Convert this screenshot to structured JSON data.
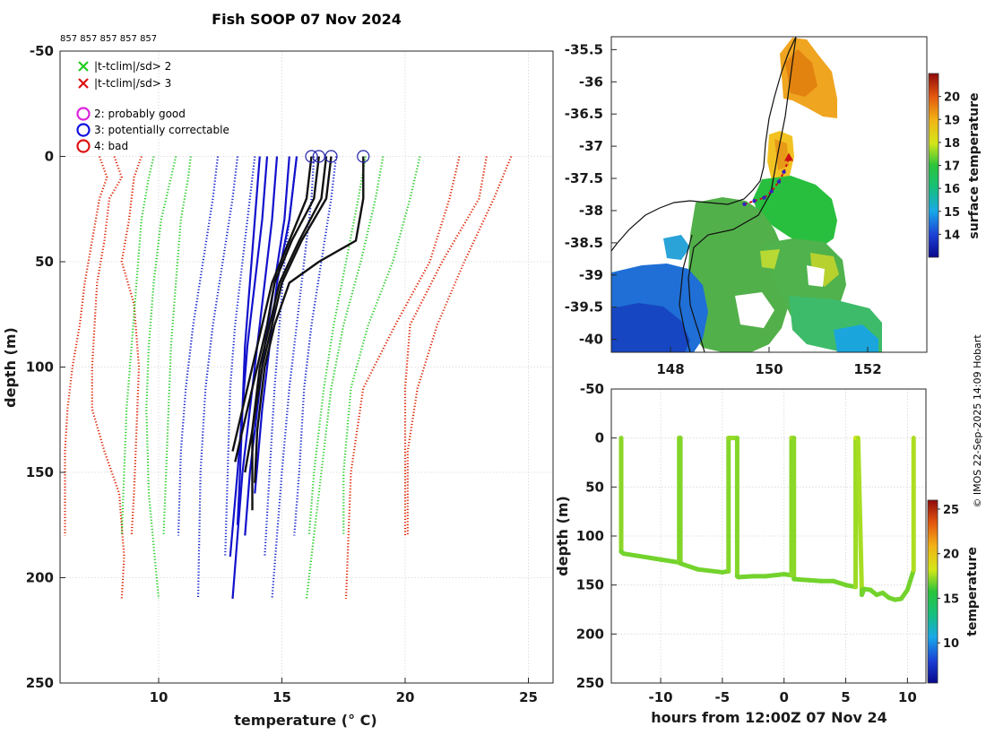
{
  "figure": {
    "title": "Fish SOOP 07 Nov 2024",
    "counts_label": "857 857 857 857 857",
    "copyright": "© IMOS 22-Sep-2025 14:09 Hobart"
  },
  "chart_data": [
    {
      "type": "line",
      "id": "profiles",
      "xlabel": "temperature (° C)",
      "ylabel": "depth (m)",
      "xlim": [
        6,
        26
      ],
      "ylim": [
        250,
        -50
      ],
      "xticks": [
        10,
        15,
        20,
        25
      ],
      "yticks": [
        -50,
        0,
        50,
        100,
        150,
        200,
        250
      ],
      "legend": [
        {
          "marker": "x",
          "color": "#22cc22",
          "label": "|t-tclim|/sd> 2"
        },
        {
          "marker": "x",
          "color": "#dd1111",
          "label": "|t-tclim|/sd> 3"
        },
        {
          "marker": "o",
          "color": "#dd22dd",
          "label": "2: probably good"
        },
        {
          "marker": "o",
          "color": "#1111dd",
          "label": "3: potentially correctable"
        },
        {
          "marker": "o",
          "color": "#dd1111",
          "label": "4: bad"
        }
      ],
      "climatology": [
        {
          "name": "clim -3sd",
          "color": "#dd2200",
          "style": "dotted",
          "profiles": [
            {
              "depth": [
                0,
                10,
                20,
                40,
                60,
                80,
                100,
                120,
                140,
                160,
                180
              ],
              "temp": [
                7.6,
                7.9,
                7.6,
                7.3,
                7.0,
                6.8,
                6.5,
                6.3,
                6.2,
                6.2,
                6.2
              ]
            },
            {
              "depth": [
                0,
                10,
                20,
                40,
                60,
                80,
                100,
                120,
                140,
                160,
                190,
                210
              ],
              "temp": [
                8.2,
                8.5,
                8.0,
                7.8,
                7.5,
                7.4,
                7.3,
                7.3,
                7.8,
                8.4,
                8.6,
                8.5
              ]
            },
            {
              "depth": [
                0,
                10,
                30,
                50,
                70,
                100,
                130,
                160,
                180
              ],
              "temp": [
                9.3,
                9.0,
                8.8,
                8.5,
                9.0,
                9.2,
                9.1,
                9.0,
                8.9
              ]
            }
          ]
        },
        {
          "name": "clim -2sd",
          "color": "#22cc22",
          "style": "dotted",
          "profiles": [
            {
              "depth": [
                0,
                10,
                30,
                60,
                90,
                120,
                150,
                180
              ],
              "temp": [
                9.8,
                9.6,
                9.3,
                9.1,
                8.9,
                8.7,
                8.6,
                8.5
              ]
            },
            {
              "depth": [
                0,
                10,
                30,
                60,
                90,
                120,
                160,
                210
              ],
              "temp": [
                10.7,
                10.5,
                10.1,
                9.8,
                9.6,
                9.5,
                9.6,
                10.0
              ]
            },
            {
              "depth": [
                0,
                10,
                30,
                60,
                90,
                120,
                150,
                180
              ],
              "temp": [
                11.3,
                11.2,
                10.9,
                10.7,
                10.5,
                10.4,
                10.3,
                10.2
              ]
            }
          ]
        },
        {
          "name": "clim -1sd",
          "color": "#1122cc",
          "style": "dotted",
          "profiles": [
            {
              "depth": [
                0,
                20,
                50,
                80,
                110,
                140,
                180
              ],
              "temp": [
                12.4,
                12.2,
                11.8,
                11.4,
                11.1,
                10.9,
                10.8
              ]
            },
            {
              "depth": [
                0,
                20,
                50,
                80,
                110,
                150,
                210
              ],
              "temp": [
                13.2,
                13.0,
                12.6,
                12.2,
                11.9,
                11.7,
                11.6
              ]
            },
            {
              "depth": [
                0,
                20,
                50,
                80,
                110,
                150,
                190
              ],
              "temp": [
                13.9,
                13.7,
                13.4,
                13.1,
                12.9,
                12.8,
                12.7
              ]
            }
          ]
        },
        {
          "name": "clim +1sd",
          "color": "#1122cc",
          "style": "dotted",
          "profiles": [
            {
              "depth": [
                0,
                20,
                50,
                80,
                110,
                150,
                190
              ],
              "temp": [
                15.6,
                15.4,
                15.1,
                14.9,
                14.7,
                14.5,
                14.3
              ]
            },
            {
              "depth": [
                0,
                20,
                50,
                80,
                110,
                150,
                210
              ],
              "temp": [
                16.3,
                16.2,
                15.9,
                15.6,
                15.3,
                15.0,
                14.6
              ]
            },
            {
              "depth": [
                0,
                20,
                50,
                80,
                110,
                150,
                180
              ],
              "temp": [
                17.2,
                17.0,
                16.6,
                16.2,
                15.9,
                15.7,
                15.5
              ]
            }
          ]
        },
        {
          "name": "clim +2sd",
          "color": "#22cc22",
          "style": "dotted",
          "profiles": [
            {
              "depth": [
                0,
                20,
                50,
                80,
                110,
                150,
                180
              ],
              "temp": [
                18.4,
                18.1,
                17.6,
                17.1,
                16.7,
                16.3,
                16.1
              ]
            },
            {
              "depth": [
                0,
                20,
                50,
                80,
                110,
                150,
                210
              ],
              "temp": [
                19.1,
                18.8,
                18.2,
                17.5,
                17.0,
                16.6,
                16.0
              ]
            },
            {
              "depth": [
                0,
                20,
                50,
                80,
                110,
                150,
                180
              ],
              "temp": [
                20.6,
                20.2,
                19.5,
                18.5,
                17.8,
                17.5,
                17.5
              ]
            }
          ]
        },
        {
          "name": "clim +3sd",
          "color": "#dd2200",
          "style": "dotted",
          "profiles": [
            {
              "depth": [
                0,
                20,
                50,
                80,
                110,
                150,
                210
              ],
              "temp": [
                22.2,
                21.8,
                21.0,
                19.6,
                18.3,
                17.8,
                17.6
              ]
            },
            {
              "depth": [
                0,
                20,
                50,
                80,
                110,
                140,
                180
              ],
              "temp": [
                23.3,
                23.0,
                21.5,
                20.2,
                20.0,
                20.0,
                20.0
              ]
            },
            {
              "depth": [
                0,
                20,
                50,
                80,
                110,
                140,
                180
              ],
              "temp": [
                24.3,
                23.6,
                22.4,
                21.3,
                20.5,
                20.1,
                20.1
              ]
            }
          ]
        }
      ],
      "mean_profiles": {
        "color": "#1111cc",
        "style": "solid",
        "profiles": [
          {
            "depth": [
              0,
              30,
              60,
              90,
              120,
              150,
              175
            ],
            "temp": [
              14.1,
              13.9,
              13.7,
              13.5,
              13.4,
              13.3,
              13.2
            ]
          },
          {
            "depth": [
              0,
              30,
              60,
              90,
              120,
              150,
              190
            ],
            "temp": [
              14.4,
              14.2,
              13.9,
              13.6,
              13.4,
              13.2,
              12.9
            ]
          },
          {
            "depth": [
              0,
              30,
              60,
              90,
              120,
              150,
              210
            ],
            "temp": [
              14.8,
              14.6,
              14.3,
              14.0,
              13.7,
              13.4,
              13.0
            ]
          },
          {
            "depth": [
              0,
              30,
              60,
              90,
              120,
              150,
              180
            ],
            "temp": [
              15.3,
              15.1,
              14.7,
              14.3,
              14.0,
              13.7,
              13.5
            ]
          },
          {
            "depth": [
              0,
              30,
              60,
              90,
              120,
              160
            ],
            "temp": [
              15.6,
              15.3,
              14.8,
              14.5,
              14.2,
              13.9
            ]
          }
        ]
      },
      "observed_profiles": {
        "color": "#111111",
        "style": "solid",
        "profiles": [
          {
            "depth": [
              0,
              20,
              40,
              60,
              80,
              100,
              120,
              145
            ],
            "temp": [
              16.5,
              16.3,
              15.4,
              14.7,
              14.4,
              14.0,
              13.6,
              13.1
            ]
          },
          {
            "depth": [
              0,
              20,
              40,
              60,
              80,
              100,
              120,
              140
            ],
            "temp": [
              16.2,
              16.0,
              15.3,
              14.6,
              14.2,
              13.8,
              13.4,
              13.0
            ]
          },
          {
            "depth": [
              0,
              20,
              40,
              60,
              80,
              100,
              130,
              150
            ],
            "temp": [
              17.0,
              16.8,
              15.8,
              15.0,
              14.6,
              14.2,
              13.8,
              13.5
            ]
          },
          {
            "depth": [
              0,
              20,
              40,
              50,
              60,
              80,
              100,
              130,
              155
            ],
            "temp": [
              18.3,
              18.3,
              18.0,
              16.5,
              15.3,
              14.7,
              14.3,
              14.0,
              13.9
            ]
          },
          {
            "depth": [
              0,
              20,
              40,
              60,
              80,
              100,
              130,
              168
            ],
            "temp": [
              16.8,
              16.6,
              15.7,
              14.9,
              14.5,
              14.1,
              13.8,
              13.8
            ]
          }
        ]
      },
      "surface_markers": {
        "depth": 0,
        "temps": [
          16.2,
          16.5,
          17.0,
          18.3
        ]
      }
    },
    {
      "type": "heatmap",
      "id": "sst_map",
      "xlim": [
        146.8,
        153.2
      ],
      "ylim": [
        -40.2,
        -35.3
      ],
      "xticks": [
        148,
        150,
        152
      ],
      "yticks": [
        -35.5,
        -36,
        -36.5,
        -37,
        -37.5,
        -38,
        -38.5,
        -39,
        -39.5,
        -40
      ],
      "colorbar": {
        "label": "surface temperature",
        "range": [
          13,
          21
        ],
        "ticks": [
          14,
          15,
          16,
          17,
          18,
          19,
          20
        ]
      },
      "track": {
        "lon": [
          149.5,
          149.7,
          149.9,
          150.05,
          150.2,
          150.3,
          150.4
        ],
        "lat": [
          -37.9,
          -37.85,
          -37.8,
          -37.7,
          -37.55,
          -37.4,
          -37.2
        ]
      }
    },
    {
      "type": "scatter",
      "id": "depth_time",
      "xlabel": "hours from 12:00Z 07 Nov 24",
      "ylabel": "depth (m)",
      "xlim": [
        -14,
        11.5
      ],
      "ylim": [
        250,
        -50
      ],
      "xticks": [
        -10,
        -5,
        0,
        5,
        10
      ],
      "yticks": [
        -50,
        0,
        50,
        100,
        150,
        200,
        250
      ],
      "colorbar": {
        "label": "temperature",
        "range": [
          5.5,
          26
        ],
        "ticks": [
          10,
          15,
          20,
          25
        ]
      },
      "track": {
        "hours": [
          -13.2,
          -13.2,
          -13.0,
          -11.5,
          -10.0,
          -9.0,
          -8.5,
          -8.5,
          -8.4,
          -8.4,
          -7.0,
          -5.0,
          -4.5,
          -4.5,
          -4.4,
          -3.8,
          -3.8,
          -3.7,
          -2.5,
          -1.5,
          0.0,
          0.6,
          0.6,
          0.8,
          0.8,
          2.0,
          3.0,
          4.0,
          5.0,
          5.8,
          5.8,
          6.0,
          6.3,
          6.3,
          6.5,
          7.0,
          7.5,
          8.0,
          8.5,
          9.0,
          9.5,
          10.0,
          10.5,
          10.5
        ],
        "depth": [
          0,
          116,
          118,
          121,
          124,
          126,
          127,
          0,
          0,
          128,
          134,
          137,
          136,
          0,
          0,
          0,
          141,
          142,
          141,
          141,
          139,
          140,
          0,
          0,
          144,
          145,
          146,
          146,
          150,
          152,
          0,
          0,
          155,
          160,
          154,
          155,
          160,
          158,
          163,
          165,
          164,
          155,
          135,
          0
        ],
        "temp": [
          17.5,
          16.8,
          16.8,
          16.8,
          16.8,
          16.8,
          16.8,
          17.2,
          17.2,
          16.8,
          16.8,
          16.8,
          16.8,
          17.3,
          17.3,
          17.3,
          16.8,
          16.8,
          16.8,
          16.8,
          16.8,
          16.8,
          17.5,
          17.5,
          16.8,
          16.8,
          16.8,
          16.8,
          16.8,
          16.8,
          18.0,
          18.3,
          16.8,
          16.8,
          16.8,
          16.8,
          16.8,
          16.8,
          16.8,
          16.8,
          16.8,
          16.8,
          16.8,
          18.5
        ]
      }
    }
  ]
}
